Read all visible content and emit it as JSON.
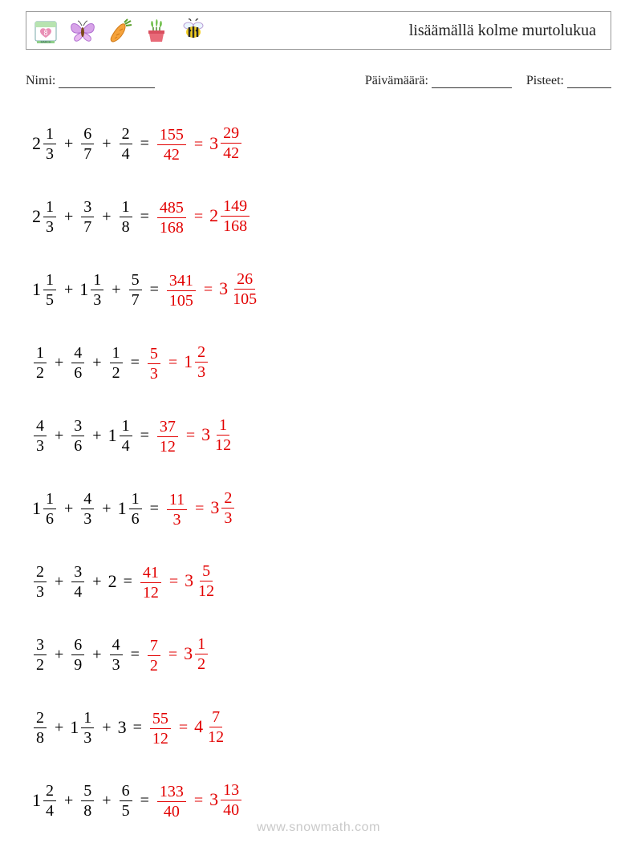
{
  "colors": {
    "answer": "#e20000",
    "text": "#000000",
    "border": "#999999",
    "watermark": "#c9c9c9",
    "background": "#ffffff"
  },
  "header": {
    "title": "lisäämällä kolme murtolukua"
  },
  "meta": {
    "name_label": "Nimi:",
    "date_label": "Päivämäärä:",
    "score_label": "Pisteet:"
  },
  "problems": [
    {
      "terms": [
        {
          "type": "mixed",
          "whole": "2",
          "num": "1",
          "den": "3"
        },
        {
          "type": "frac",
          "num": "6",
          "den": "7"
        },
        {
          "type": "frac",
          "num": "2",
          "den": "4"
        }
      ],
      "answers": [
        {
          "type": "frac",
          "num": "155",
          "den": "42"
        },
        {
          "type": "mixed",
          "whole": "3",
          "num": "29",
          "den": "42"
        }
      ]
    },
    {
      "terms": [
        {
          "type": "mixed",
          "whole": "2",
          "num": "1",
          "den": "3"
        },
        {
          "type": "frac",
          "num": "3",
          "den": "7"
        },
        {
          "type": "frac",
          "num": "1",
          "den": "8"
        }
      ],
      "answers": [
        {
          "type": "frac",
          "num": "485",
          "den": "168"
        },
        {
          "type": "mixed",
          "whole": "2",
          "num": "149",
          "den": "168"
        }
      ]
    },
    {
      "terms": [
        {
          "type": "mixed",
          "whole": "1",
          "num": "1",
          "den": "5"
        },
        {
          "type": "mixed",
          "whole": "1",
          "num": "1",
          "den": "3"
        },
        {
          "type": "frac",
          "num": "5",
          "den": "7"
        }
      ],
      "answers": [
        {
          "type": "frac",
          "num": "341",
          "den": "105"
        },
        {
          "type": "mixed",
          "whole": "3",
          "num": "26",
          "den": "105"
        }
      ]
    },
    {
      "terms": [
        {
          "type": "frac",
          "num": "1",
          "den": "2"
        },
        {
          "type": "frac",
          "num": "4",
          "den": "6"
        },
        {
          "type": "frac",
          "num": "1",
          "den": "2"
        }
      ],
      "answers": [
        {
          "type": "frac",
          "num": "5",
          "den": "3"
        },
        {
          "type": "mixed",
          "whole": "1",
          "num": "2",
          "den": "3"
        }
      ]
    },
    {
      "terms": [
        {
          "type": "frac",
          "num": "4",
          "den": "3"
        },
        {
          "type": "frac",
          "num": "3",
          "den": "6"
        },
        {
          "type": "mixed",
          "whole": "1",
          "num": "1",
          "den": "4"
        }
      ],
      "answers": [
        {
          "type": "frac",
          "num": "37",
          "den": "12"
        },
        {
          "type": "mixed",
          "whole": "3",
          "num": "1",
          "den": "12"
        }
      ]
    },
    {
      "terms": [
        {
          "type": "mixed",
          "whole": "1",
          "num": "1",
          "den": "6"
        },
        {
          "type": "frac",
          "num": "4",
          "den": "3"
        },
        {
          "type": "mixed",
          "whole": "1",
          "num": "1",
          "den": "6"
        }
      ],
      "answers": [
        {
          "type": "frac",
          "num": "11",
          "den": "3"
        },
        {
          "type": "mixed",
          "whole": "3",
          "num": "2",
          "den": "3"
        }
      ]
    },
    {
      "terms": [
        {
          "type": "frac",
          "num": "2",
          "den": "3"
        },
        {
          "type": "frac",
          "num": "3",
          "den": "4"
        },
        {
          "type": "int",
          "value": "2"
        }
      ],
      "answers": [
        {
          "type": "frac",
          "num": "41",
          "den": "12"
        },
        {
          "type": "mixed",
          "whole": "3",
          "num": "5",
          "den": "12"
        }
      ]
    },
    {
      "terms": [
        {
          "type": "frac",
          "num": "3",
          "den": "2"
        },
        {
          "type": "frac",
          "num": "6",
          "den": "9"
        },
        {
          "type": "frac",
          "num": "4",
          "den": "3"
        }
      ],
      "answers": [
        {
          "type": "frac",
          "num": "7",
          "den": "2"
        },
        {
          "type": "mixed",
          "whole": "3",
          "num": "1",
          "den": "2"
        }
      ]
    },
    {
      "terms": [
        {
          "type": "frac",
          "num": "2",
          "den": "8"
        },
        {
          "type": "mixed",
          "whole": "1",
          "num": "1",
          "den": "3"
        },
        {
          "type": "int",
          "value": "3"
        }
      ],
      "answers": [
        {
          "type": "frac",
          "num": "55",
          "den": "12"
        },
        {
          "type": "mixed",
          "whole": "4",
          "num": "7",
          "den": "12"
        }
      ]
    },
    {
      "terms": [
        {
          "type": "mixed",
          "whole": "1",
          "num": "2",
          "den": "4"
        },
        {
          "type": "frac",
          "num": "5",
          "den": "8"
        },
        {
          "type": "frac",
          "num": "6",
          "den": "5"
        }
      ],
      "answers": [
        {
          "type": "frac",
          "num": "133",
          "den": "40"
        },
        {
          "type": "mixed",
          "whole": "3",
          "num": "13",
          "den": "40"
        }
      ]
    }
  ],
  "watermark": "www.snowmath.com"
}
